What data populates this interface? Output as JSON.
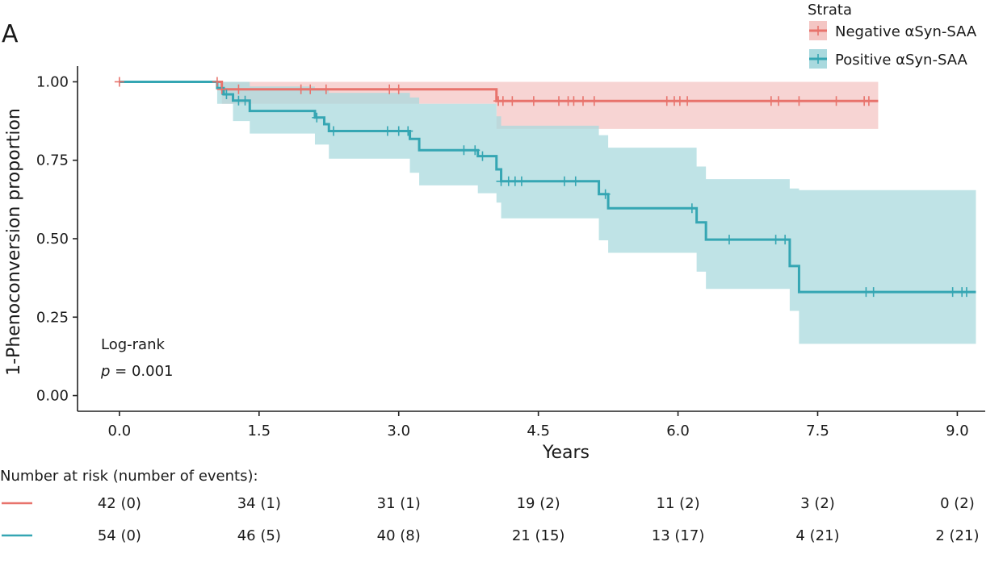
{
  "panel_label": "A",
  "chart_data": {
    "type": "line",
    "subtype": "kaplan-meier",
    "xlabel": "Years",
    "ylabel": "1-Phenoconversion proportion",
    "xlim": [
      -0.45,
      9.3
    ],
    "ylim": [
      -0.05,
      1.05
    ],
    "x_ticks": [
      "0.0",
      "1.5",
      "3.0",
      "4.5",
      "6.0",
      "7.5",
      "9.0"
    ],
    "y_ticks": [
      "0.00",
      "0.25",
      "0.50",
      "0.75",
      "1.00"
    ],
    "grid": false,
    "legend": {
      "title": "Strata",
      "position": "top-right",
      "entries": [
        "Negative αSyn-SAA",
        "Positive αSyn-SAA"
      ]
    },
    "annotation": {
      "line1": "Log-rank",
      "p_symbol": "p",
      "p_rest": " = 0.001"
    },
    "series": [
      {
        "name": "Negative αSyn-SAA",
        "color": "#e8736c",
        "band_color": "#f4c6c4",
        "steps": [
          [
            0,
            1.0
          ],
          [
            1.1,
            0.976
          ],
          [
            4.05,
            0.939
          ],
          [
            8.15,
            0.939
          ]
        ],
        "ci_steps": [
          [
            0,
            1.0,
            1.0
          ],
          [
            1.1,
            1.0,
            0.93
          ],
          [
            4.05,
            1.0,
            0.85
          ],
          [
            8.15,
            1.0,
            0.85
          ]
        ],
        "censored": [
          0.0,
          1.05,
          1.1,
          1.28,
          1.95,
          2.05,
          2.22,
          2.9,
          3.0,
          4.07,
          4.12,
          4.22,
          4.45,
          4.72,
          4.82,
          4.88,
          4.98,
          5.1,
          5.88,
          5.96,
          6.02,
          6.1,
          7.0,
          7.08,
          7.3,
          7.7,
          8.0,
          8.05
        ]
      },
      {
        "name": "Positive αSyn-SAA",
        "color": "#35a6b3",
        "band_color": "#a9d9de",
        "steps": [
          [
            0,
            1.0
          ],
          [
            1.05,
            0.98
          ],
          [
            1.12,
            0.96
          ],
          [
            1.22,
            0.94
          ],
          [
            1.4,
            0.907
          ],
          [
            2.1,
            0.886
          ],
          [
            2.2,
            0.865
          ],
          [
            2.25,
            0.843
          ],
          [
            3.12,
            0.818
          ],
          [
            3.22,
            0.782
          ],
          [
            3.85,
            0.763
          ],
          [
            4.05,
            0.721
          ],
          [
            4.1,
            0.683
          ],
          [
            5.15,
            0.642
          ],
          [
            5.25,
            0.597
          ],
          [
            6.2,
            0.552
          ],
          [
            6.3,
            0.497
          ],
          [
            7.2,
            0.413
          ],
          [
            7.3,
            0.33
          ],
          [
            9.2,
            0.33
          ]
        ],
        "ci_steps": [
          [
            0,
            1.0,
            1.0
          ],
          [
            1.05,
            1.0,
            0.93
          ],
          [
            1.22,
            1.0,
            0.875
          ],
          [
            1.4,
            0.985,
            0.835
          ],
          [
            2.1,
            0.975,
            0.8
          ],
          [
            2.25,
            0.965,
            0.755
          ],
          [
            3.12,
            0.95,
            0.71
          ],
          [
            3.22,
            0.93,
            0.67
          ],
          [
            3.85,
            0.93,
            0.645
          ],
          [
            4.05,
            0.89,
            0.615
          ],
          [
            4.1,
            0.86,
            0.565
          ],
          [
            5.15,
            0.83,
            0.495
          ],
          [
            5.25,
            0.79,
            0.455
          ],
          [
            6.2,
            0.73,
            0.395
          ],
          [
            6.3,
            0.69,
            0.34
          ],
          [
            7.2,
            0.66,
            0.27
          ],
          [
            7.3,
            0.655,
            0.165
          ],
          [
            9.2,
            0.655,
            0.165
          ]
        ],
        "censored": [
          1.15,
          1.28,
          1.35,
          2.12,
          2.3,
          2.88,
          3.0,
          3.1,
          3.7,
          3.82,
          3.9,
          4.1,
          4.18,
          4.25,
          4.32,
          4.78,
          4.9,
          5.22,
          6.15,
          6.55,
          7.05,
          7.15,
          8.02,
          8.1,
          8.95,
          9.05,
          9.1
        ]
      }
    ]
  },
  "risk_table": {
    "title": "Number at risk (number of events):",
    "rows": [
      {
        "color": "#e8736c",
        "values": [
          "42 (0)",
          "34 (1)",
          "31 (1)",
          "19 (2)",
          "11 (2)",
          "3 (2)",
          "0 (2)"
        ]
      },
      {
        "color": "#35a6b3",
        "values": [
          "54 (0)",
          "46 (5)",
          "40 (8)",
          "21 (15)",
          "13 (17)",
          "4 (21)",
          "2 (21)"
        ]
      }
    ]
  }
}
